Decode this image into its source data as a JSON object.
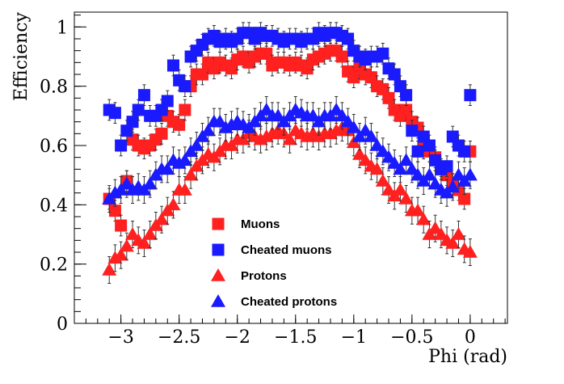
{
  "chart_data": {
    "type": "scatter",
    "xlabel": "Phi (rad)",
    "ylabel": "Efficiency",
    "xlim": [
      -3.4,
      0.32
    ],
    "ylim": [
      0,
      1.05
    ],
    "x_ticks": [
      -3,
      -2.5,
      -2,
      -1.5,
      -1,
      -0.5,
      0
    ],
    "x_tick_labels": [
      "−3",
      "−2.5",
      "−2",
      "−1.5",
      "−1",
      "−0.5",
      "0"
    ],
    "y_ticks": [
      0,
      0.2,
      0.4,
      0.6,
      0.8,
      1
    ],
    "y_tick_labels": [
      "0",
      "0.2",
      "0.4",
      "0.6",
      "0.8",
      "1"
    ],
    "grid": false,
    "legend_position": "bottom-center",
    "x": [
      -3.1,
      -3.05,
      -3.0,
      -2.95,
      -2.9,
      -2.85,
      -2.8,
      -2.75,
      -2.7,
      -2.65,
      -2.6,
      -2.55,
      -2.5,
      -2.45,
      -2.4,
      -2.35,
      -2.3,
      -2.25,
      -2.2,
      -2.15,
      -2.1,
      -2.05,
      -2.0,
      -1.95,
      -1.9,
      -1.85,
      -1.8,
      -1.75,
      -1.7,
      -1.65,
      -1.6,
      -1.55,
      -1.5,
      -1.45,
      -1.4,
      -1.35,
      -1.3,
      -1.25,
      -1.2,
      -1.15,
      -1.1,
      -1.05,
      -1.0,
      -0.95,
      -0.9,
      -0.85,
      -0.8,
      -0.75,
      -0.7,
      -0.65,
      -0.6,
      -0.55,
      -0.5,
      -0.45,
      -0.4,
      -0.35,
      -0.3,
      -0.25,
      -0.2,
      -0.15,
      -0.1,
      -0.05,
      0.0
    ],
    "series": [
      {
        "name": "Muons",
        "marker": "square",
        "color": "#ff2020",
        "values": [
          0.42,
          0.38,
          0.33,
          0.48,
          0.62,
          0.6,
          0.59,
          0.6,
          0.62,
          0.64,
          0.7,
          0.68,
          0.67,
          0.72,
          0.8,
          0.84,
          0.84,
          0.88,
          0.86,
          0.88,
          0.87,
          0.86,
          0.89,
          0.9,
          0.88,
          0.9,
          0.91,
          0.91,
          0.87,
          0.88,
          0.88,
          0.87,
          0.88,
          0.87,
          0.86,
          0.89,
          0.9,
          0.91,
          0.92,
          0.92,
          0.9,
          0.85,
          0.83,
          0.86,
          0.84,
          0.83,
          0.8,
          0.79,
          0.76,
          0.72,
          0.7,
          0.72,
          0.68,
          0.66,
          0.59,
          0.58,
          0.56,
          0.52,
          0.5,
          0.47,
          0.45,
          0.42,
          0.58
        ]
      },
      {
        "name": "Cheated muons",
        "marker": "square",
        "color": "#1a1aff",
        "values": [
          0.72,
          0.71,
          0.6,
          0.65,
          0.68,
          0.72,
          0.77,
          0.7,
          0.7,
          0.72,
          0.75,
          0.87,
          0.82,
          0.8,
          0.9,
          0.92,
          0.94,
          0.96,
          0.97,
          0.95,
          0.96,
          0.95,
          0.96,
          0.98,
          0.98,
          0.96,
          0.98,
          0.97,
          0.97,
          0.96,
          0.95,
          0.96,
          0.96,
          0.95,
          0.96,
          0.96,
          0.98,
          0.97,
          0.98,
          0.98,
          0.97,
          0.96,
          0.92,
          0.9,
          0.89,
          0.9,
          0.9,
          0.91,
          0.86,
          0.84,
          0.8,
          0.77,
          0.65,
          0.58,
          0.63,
          0.6,
          0.55,
          0.52,
          0.53,
          0.63,
          0.6,
          0.58,
          0.77
        ]
      },
      {
        "name": "Protons",
        "marker": "triangle",
        "color": "#ff2020",
        "values": [
          0.18,
          0.22,
          0.23,
          0.26,
          0.3,
          0.28,
          0.27,
          0.3,
          0.33,
          0.35,
          0.38,
          0.4,
          0.45,
          0.45,
          0.5,
          0.53,
          0.55,
          0.57,
          0.56,
          0.58,
          0.6,
          0.6,
          0.62,
          0.62,
          0.64,
          0.63,
          0.62,
          0.63,
          0.64,
          0.65,
          0.64,
          0.62,
          0.65,
          0.64,
          0.63,
          0.64,
          0.63,
          0.64,
          0.64,
          0.65,
          0.66,
          0.65,
          0.61,
          0.57,
          0.55,
          0.53,
          0.52,
          0.48,
          0.45,
          0.43,
          0.45,
          0.42,
          0.38,
          0.38,
          0.35,
          0.3,
          0.32,
          0.3,
          0.28,
          0.27,
          0.3,
          0.25,
          0.24
        ]
      },
      {
        "name": "Cheated protons",
        "marker": "triangle",
        "color": "#1a1aff",
        "values": [
          0.42,
          0.44,
          0.45,
          0.47,
          0.45,
          0.46,
          0.45,
          0.47,
          0.5,
          0.52,
          0.52,
          0.55,
          0.54,
          0.55,
          0.58,
          0.6,
          0.63,
          0.65,
          0.68,
          0.68,
          0.66,
          0.67,
          0.68,
          0.67,
          0.66,
          0.68,
          0.7,
          0.72,
          0.7,
          0.7,
          0.68,
          0.7,
          0.72,
          0.71,
          0.7,
          0.7,
          0.68,
          0.7,
          0.7,
          0.72,
          0.7,
          0.68,
          0.66,
          0.63,
          0.65,
          0.63,
          0.6,
          0.58,
          0.56,
          0.54,
          0.52,
          0.55,
          0.52,
          0.5,
          0.48,
          0.5,
          0.47,
          0.45,
          0.44,
          0.46,
          0.5,
          0.48,
          0.5
        ]
      }
    ]
  }
}
